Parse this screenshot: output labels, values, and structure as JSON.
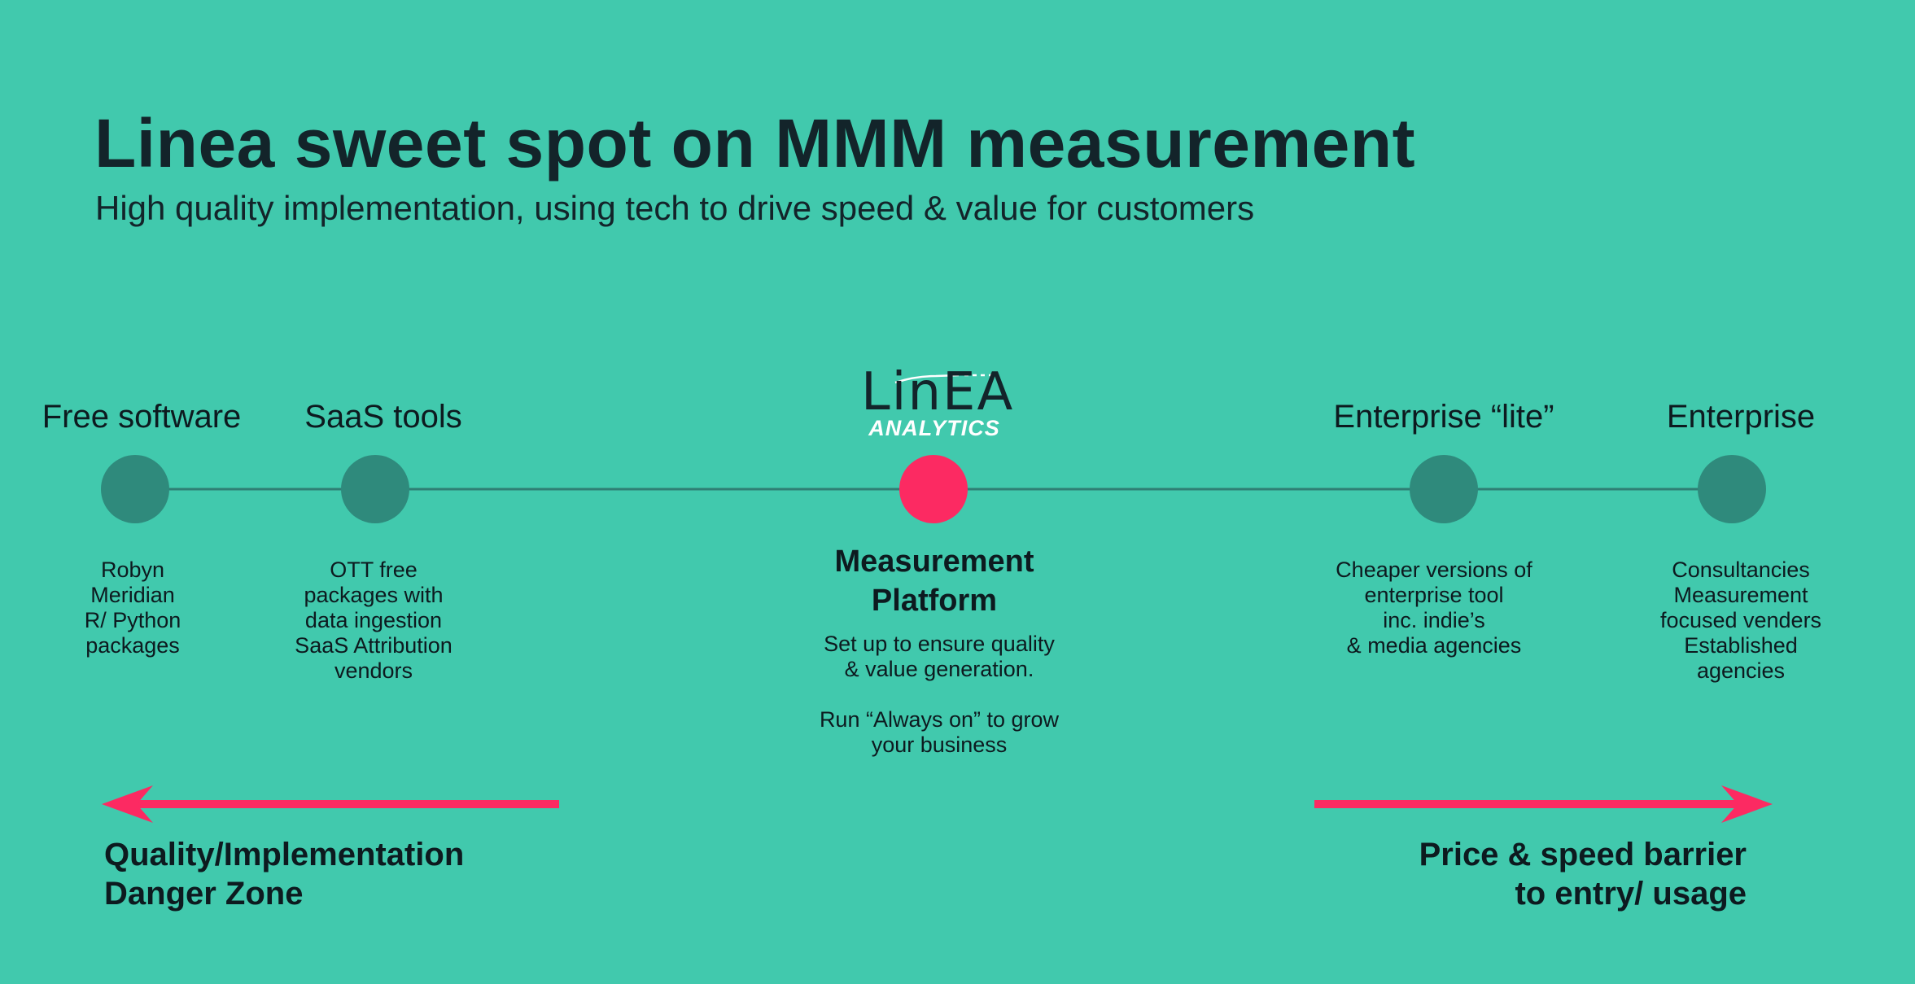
{
  "header": {
    "title": "Linea sweet spot on MMM measurement",
    "subtitle": "High quality implementation, using tech to drive speed & value for customers"
  },
  "logo": {
    "wordmark": "LinEA",
    "tagline": "ANALYTICS"
  },
  "colors": {
    "background": "#41c9ad",
    "node": "#2f8a7c",
    "highlight": "#fc2a62",
    "line": "#2f7e74",
    "text": "#0d1a1f"
  },
  "segments": [
    {
      "label": "Free software",
      "description": "Robyn\nMeridian\nR/ Python\npackages"
    },
    {
      "label": "SaaS tools",
      "description": "OTT free\npackages with\ndata ingestion\nSaaS Attribution\nvendors"
    },
    {
      "label": "Measurement\nPlatform",
      "description": "Set up to ensure quality\n& value generation.\n\nRun “Always on” to grow\nyour business"
    },
    {
      "label": "Enterprise “lite”",
      "description": "Cheaper versions of\nenterprise tool\ninc. indie’s\n& media agencies"
    },
    {
      "label": "Enterprise",
      "description": "Consultancies\nMeasurement\nfocused venders\nEstablished agencies"
    }
  ],
  "zones": {
    "left": "Quality/Implementation\nDanger Zone",
    "right": "Price & speed barrier\nto entry/ usage"
  }
}
